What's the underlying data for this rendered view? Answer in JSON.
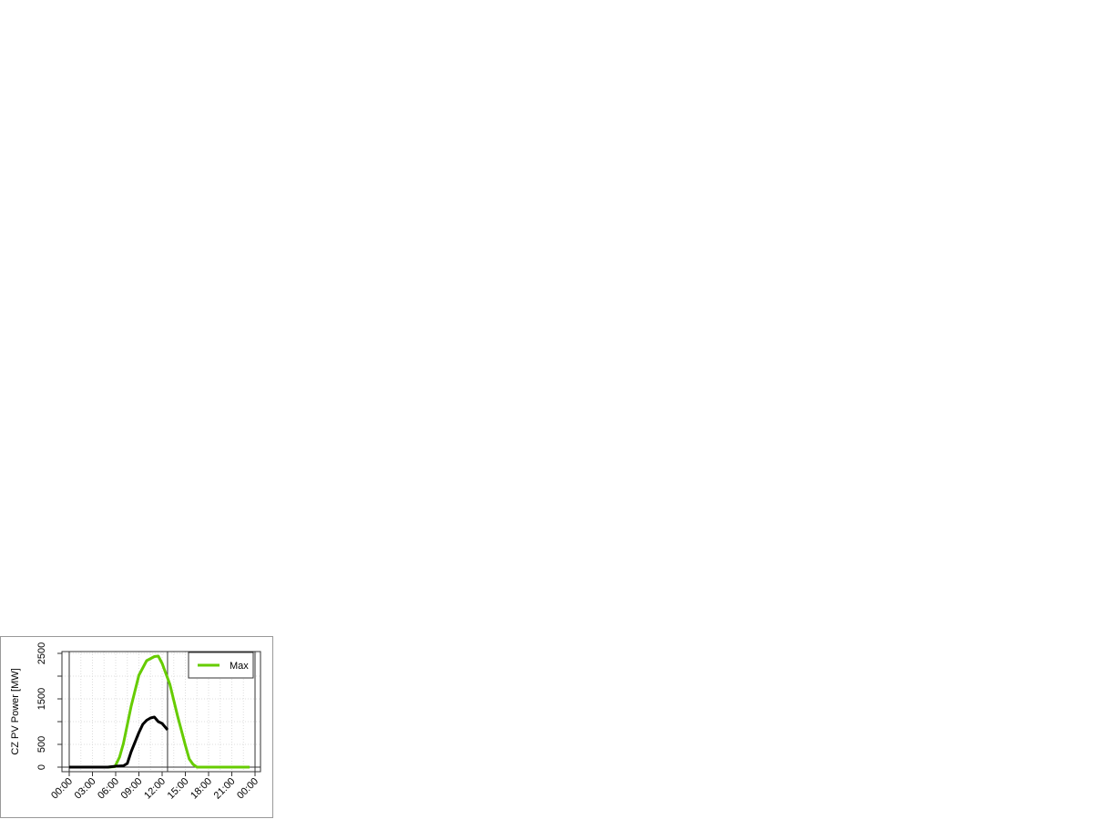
{
  "chart_data": {
    "type": "line",
    "title": "",
    "xlabel": "",
    "ylabel": "CZ PV Power [MW]",
    "xlim": [
      "00:00",
      "24:00"
    ],
    "ylim": [
      0,
      2500
    ],
    "x_ticks": [
      "00:00",
      "03:00",
      "06:00",
      "09:00",
      "12:00",
      "15:00",
      "18:00",
      "21:00",
      "00:00"
    ],
    "y_ticks": [
      0,
      1000,
      2000
    ],
    "y_tick_labels": [
      "0",
      "500",
      "1500",
      "2500"
    ],
    "y_tick_label_values": [
      0,
      500,
      1500,
      2500
    ],
    "y_ticks_all": [
      0,
      500,
      1000,
      1500,
      2000,
      2500
    ],
    "grid": true,
    "legend_position": "top-right",
    "vertical_lines_hours": [
      0,
      12.7,
      24
    ],
    "series": [
      {
        "name": "Max",
        "color": "#66cc00",
        "x_hours": [
          0,
          1,
          2,
          3,
          4,
          5,
          5.9,
          6.5,
          7,
          8,
          9,
          10,
          11,
          11.5,
          12,
          13,
          14,
          15,
          15.5,
          16,
          16.5,
          17,
          18,
          19,
          20,
          21,
          22,
          23,
          23.3
        ],
        "values": [
          0,
          0,
          0,
          0,
          0,
          0,
          10,
          220,
          520,
          1340,
          2020,
          2340,
          2430,
          2440,
          2280,
          1820,
          1120,
          480,
          180,
          60,
          0,
          0,
          0,
          0,
          0,
          0,
          0,
          0,
          0
        ]
      },
      {
        "color": "#000000",
        "x_hours": [
          0,
          1,
          2,
          3,
          4,
          5,
          6,
          7,
          7.5,
          8,
          9,
          9.5,
          10,
          10.5,
          11,
          11.5,
          12,
          12.4,
          12.7
        ],
        "values": [
          0,
          0,
          0,
          0,
          0,
          0,
          20,
          30,
          80,
          340,
          760,
          940,
          1030,
          1080,
          1100,
          1000,
          960,
          880,
          820
        ]
      }
    ]
  }
}
